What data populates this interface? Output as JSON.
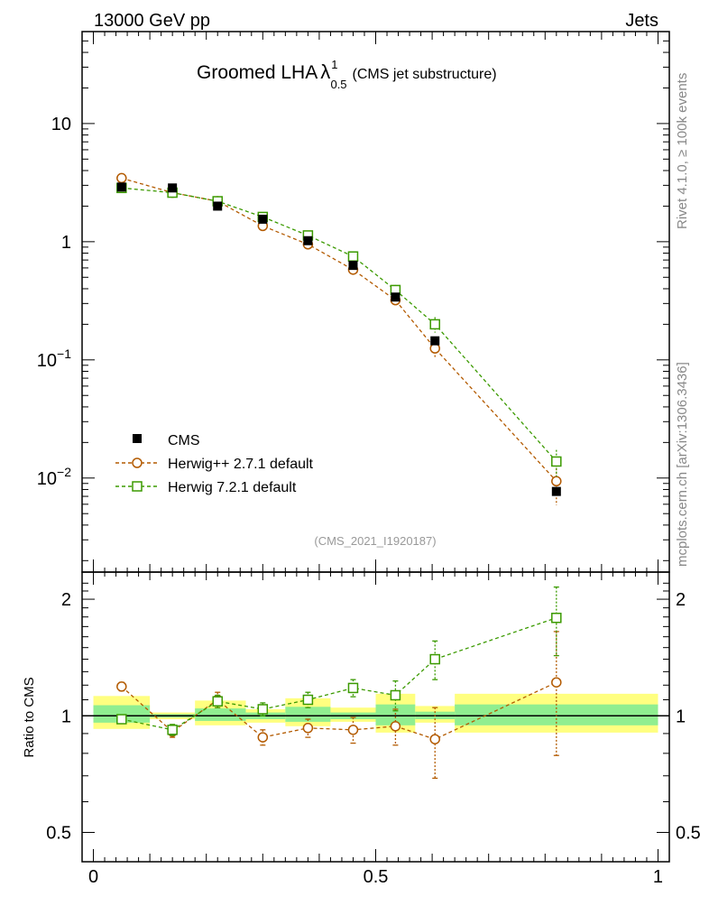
{
  "header": {
    "left": "13000 GeV pp",
    "right": "Jets"
  },
  "side_text": {
    "rivet": "Rivet 4.1.0, ≥ 100k events",
    "mcplots": "mcplots.cern.ch [arXiv:1306.3436]"
  },
  "colors": {
    "cms": "#000000",
    "herwigpp": "#b35a00",
    "herwig7": "#3b9a00",
    "band_outer": "#ffff80",
    "band_inner": "#90ee90"
  },
  "chart_data": [
    {
      "type": "scatter",
      "panel": "main",
      "title": "Groomed LHA",
      "title_symbol": "λ",
      "title_superscript": "1",
      "title_subscript": "0.5",
      "title_note": "(CMS jet substructure)",
      "analysis_label": "(CMS_2021_I1920187)",
      "yscale": "log",
      "ylim": [
        0.0016,
        60
      ],
      "xlim": [
        -0.02,
        1.02
      ],
      "ytick_labels": [
        {
          "value": 10,
          "mantissa": "10",
          "exp": ""
        },
        {
          "value": 1,
          "mantissa": "1",
          "exp": ""
        },
        {
          "value": 0.1,
          "mantissa": "10",
          "exp": "−1"
        },
        {
          "value": 0.01,
          "mantissa": "10",
          "exp": "−2"
        }
      ],
      "legend_position": "bottom-left",
      "bins": [
        [
          0,
          0.1
        ],
        [
          0.1,
          0.18
        ],
        [
          0.18,
          0.27
        ],
        [
          0.27,
          0.34
        ],
        [
          0.34,
          0.42
        ],
        [
          0.42,
          0.5
        ],
        [
          0.5,
          0.57
        ],
        [
          0.57,
          0.64
        ],
        [
          0.64,
          1.0
        ]
      ],
      "series": [
        {
          "name": "CMS",
          "marker": "filled-square",
          "x": [
            0.05,
            0.14,
            0.22,
            0.3,
            0.38,
            0.46,
            0.535,
            0.605,
            0.82
          ],
          "y": [
            2.9,
            2.85,
            2.0,
            1.55,
            1.02,
            0.63,
            0.34,
            0.145,
            0.0077
          ]
        },
        {
          "name": "Herwig++ 2.7.1 default",
          "marker": "open-circle",
          "x": [
            0.05,
            0.14,
            0.22,
            0.3,
            0.38,
            0.46,
            0.535,
            0.605,
            0.82
          ],
          "y": [
            3.45,
            2.6,
            2.2,
            1.36,
            0.95,
            0.58,
            0.32,
            0.125,
            0.0094
          ],
          "yerr": [
            0.05,
            0.04,
            0.05,
            0.05,
            0.04,
            0.03,
            0.03,
            0.02,
            0.0035
          ]
        },
        {
          "name": "Herwig 7.2.1 default",
          "marker": "open-square",
          "x": [
            0.05,
            0.14,
            0.22,
            0.3,
            0.38,
            0.46,
            0.535,
            0.605,
            0.82
          ],
          "y": [
            2.85,
            2.6,
            2.2,
            1.62,
            1.13,
            0.75,
            0.39,
            0.2,
            0.0138
          ],
          "yerr": [
            0.05,
            0.04,
            0.05,
            0.05,
            0.05,
            0.04,
            0.04,
            0.03,
            0.0035
          ]
        }
      ]
    },
    {
      "type": "line",
      "panel": "ratio",
      "ylabel": "Ratio to CMS",
      "yscale": "log",
      "ylim": [
        0.42,
        2.35
      ],
      "xlim": [
        -0.02,
        1.02
      ],
      "ytick_labels": [
        {
          "value": 2,
          "label": "2"
        },
        {
          "value": 1,
          "label": "1"
        },
        {
          "value": 0.5,
          "label": "0.5"
        }
      ],
      "xtick_labels": [
        {
          "value": 0,
          "label": "0"
        },
        {
          "value": 0.5,
          "label": "0.5"
        },
        {
          "value": 1,
          "label": "1"
        }
      ],
      "bands": {
        "bins": [
          [
            0,
            0.1
          ],
          [
            0.1,
            0.18
          ],
          [
            0.18,
            0.27
          ],
          [
            0.27,
            0.34
          ],
          [
            0.34,
            0.42
          ],
          [
            0.42,
            0.5
          ],
          [
            0.5,
            0.57
          ],
          [
            0.57,
            0.64
          ],
          [
            0.64,
            1.0
          ]
        ],
        "outer": [
          [
            0.925,
            1.125
          ],
          [
            0.98,
            1.02
          ],
          [
            0.945,
            1.095
          ],
          [
            0.96,
            1.04
          ],
          [
            0.94,
            1.11
          ],
          [
            0.965,
            1.05
          ],
          [
            0.905,
            1.14
          ],
          [
            0.96,
            1.06
          ],
          [
            0.905,
            1.14
          ]
        ],
        "inner": [
          [
            0.96,
            1.065
          ],
          [
            0.99,
            1.01
          ],
          [
            0.97,
            1.045
          ],
          [
            0.98,
            1.02
          ],
          [
            0.965,
            1.055
          ],
          [
            0.98,
            1.02
          ],
          [
            0.945,
            1.07
          ],
          [
            0.98,
            1.025
          ],
          [
            0.945,
            1.07
          ]
        ]
      },
      "series": [
        {
          "name": "Herwig++ 2.7.1 default",
          "x": [
            0.05,
            0.14,
            0.22,
            0.3,
            0.38,
            0.46,
            0.535,
            0.605,
            0.82
          ],
          "y": [
            1.19,
            0.91,
            1.1,
            0.88,
            0.93,
            0.92,
            0.94,
            0.87,
            1.22
          ],
          "yerr_low": [
            0.03,
            0.03,
            0.05,
            0.04,
            0.05,
            0.07,
            0.1,
            0.18,
            0.43
          ],
          "yerr_high": [
            0.03,
            0.03,
            0.05,
            0.04,
            0.05,
            0.07,
            0.1,
            0.18,
            0.43
          ]
        },
        {
          "name": "Herwig 7.2.1 default",
          "x": [
            0.05,
            0.14,
            0.22,
            0.3,
            0.38,
            0.46,
            0.535,
            0.605,
            0.82
          ],
          "y": [
            0.98,
            0.92,
            1.09,
            1.04,
            1.1,
            1.18,
            1.13,
            1.4,
            1.79
          ],
          "yerr_low": [
            0.02,
            0.03,
            0.04,
            0.04,
            0.05,
            0.06,
            0.1,
            0.16,
            0.36
          ],
          "yerr_high": [
            0.02,
            0.03,
            0.04,
            0.04,
            0.05,
            0.06,
            0.1,
            0.16,
            0.36
          ]
        }
      ]
    }
  ]
}
